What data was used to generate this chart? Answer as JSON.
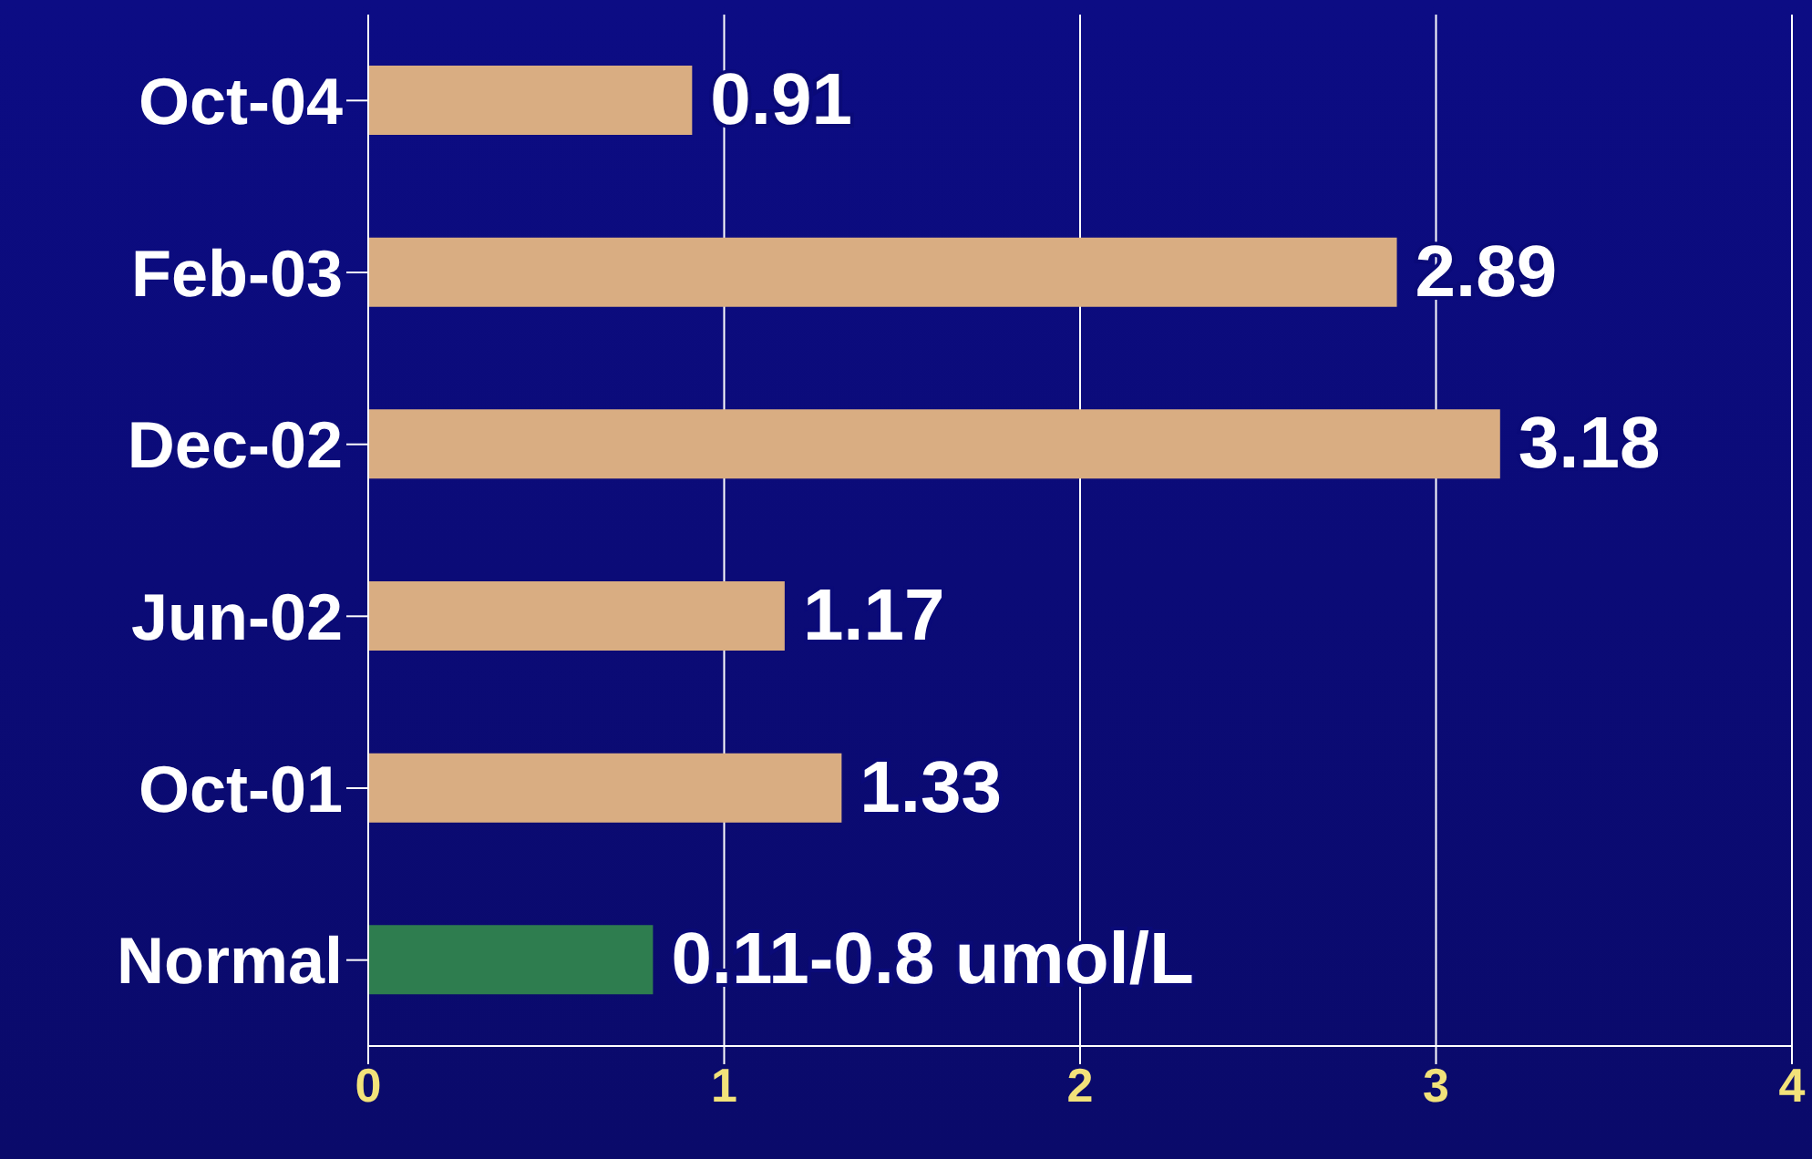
{
  "chart_data": {
    "type": "bar",
    "orientation": "horizontal",
    "categories": [
      "Oct-04",
      "Feb-03",
      "Dec-02",
      "Jun-02",
      "Oct-01",
      "Normal"
    ],
    "values": [
      0.91,
      2.89,
      3.18,
      1.17,
      1.33,
      0.8
    ],
    "colors": [
      "#d9ad82",
      "#d9ad82",
      "#d9ad82",
      "#d9ad82",
      "#d9ad82",
      "#2e7d4f"
    ],
    "value_labels": [
      "0.91",
      "2.89",
      "3.18",
      "1.17",
      "1.33",
      "0.11-0.8 umol/L"
    ],
    "xlim": [
      0,
      4
    ],
    "xticks": [
      0,
      1,
      2,
      3,
      4
    ],
    "grid": "x"
  }
}
